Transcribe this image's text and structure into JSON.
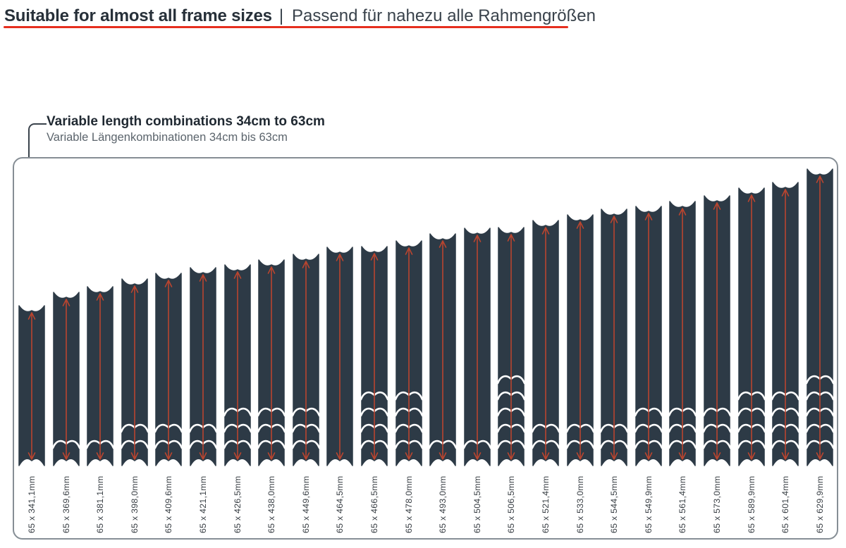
{
  "header": {
    "title_en": "Suitable for almost all frame sizes",
    "divider": "|",
    "title_de": "Passend für nahezu alle Rahmengrößen"
  },
  "annotation": {
    "en": "Variable length combinations 34cm to 63cm",
    "de": "Variable Längenkombinationen 34cm bis 63cm"
  },
  "colors": {
    "underline_red": "#e62e1e",
    "strip_fill": "#2d3a46",
    "measure_arrow_red": "#b9452f",
    "separator_white": "#ffffff",
    "box_border": "#868e95"
  },
  "diagram": {
    "strip_width_mm": 65,
    "strips": [
      {
        "label": "65 x 341,1mm",
        "length_mm": 341.1,
        "separator_lines": 0
      },
      {
        "label": "65 x 369,6mm",
        "length_mm": 369.6,
        "separator_lines": 1
      },
      {
        "label": "65 x 381,1mm",
        "length_mm": 381.1,
        "separator_lines": 1
      },
      {
        "label": "65 x 398,0mm",
        "length_mm": 398.0,
        "separator_lines": 2
      },
      {
        "label": "65 x 409,6mm",
        "length_mm": 409.6,
        "separator_lines": 2
      },
      {
        "label": "65 x 421,1mm",
        "length_mm": 421.1,
        "separator_lines": 2
      },
      {
        "label": "65 x 426,5mm",
        "length_mm": 426.5,
        "separator_lines": 3
      },
      {
        "label": "65 x 438,0mm",
        "length_mm": 438.0,
        "separator_lines": 3
      },
      {
        "label": "65 x 449,6mm",
        "length_mm": 449.6,
        "separator_lines": 3
      },
      {
        "label": "65 x 464,5mm",
        "length_mm": 464.5,
        "separator_lines": 0
      },
      {
        "label": "65 x 466,5mm",
        "length_mm": 466.5,
        "separator_lines": 4
      },
      {
        "label": "65 x 478,0mm",
        "length_mm": 478.0,
        "separator_lines": 4
      },
      {
        "label": "65 x 493,0mm",
        "length_mm": 493.0,
        "separator_lines": 1
      },
      {
        "label": "65 x 504,5mm",
        "length_mm": 504.5,
        "separator_lines": 1
      },
      {
        "label": "65 x 506,5mm",
        "length_mm": 506.5,
        "separator_lines": 5
      },
      {
        "label": "65 x 521,4mm",
        "length_mm": 521.4,
        "separator_lines": 2
      },
      {
        "label": "65 x 533,0mm",
        "length_mm": 533.0,
        "separator_lines": 2
      },
      {
        "label": "65 x 544,5mm",
        "length_mm": 544.5,
        "separator_lines": 2
      },
      {
        "label": "65 x 549,9mm",
        "length_mm": 549.9,
        "separator_lines": 3
      },
      {
        "label": "65 x 561,4mm",
        "length_mm": 561.4,
        "separator_lines": 3
      },
      {
        "label": "65 x 573,0mm",
        "length_mm": 573.0,
        "separator_lines": 3
      },
      {
        "label": "65 x 589,9mm",
        "length_mm": 589.9,
        "separator_lines": 4
      },
      {
        "label": "65 x 601,4mm",
        "length_mm": 601.4,
        "separator_lines": 4
      },
      {
        "label": "65 x 629,9mm",
        "length_mm": 629.9,
        "separator_lines": 5
      }
    ]
  }
}
